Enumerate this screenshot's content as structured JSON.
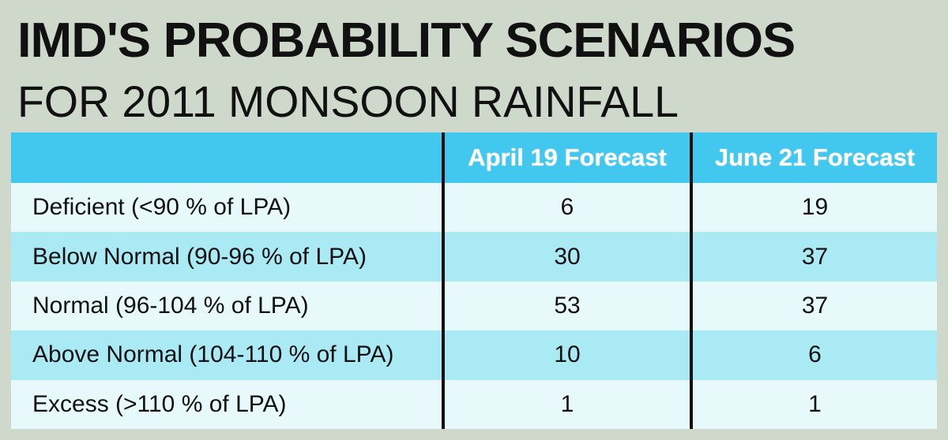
{
  "title": "IMD'S PROBABILITY SCENARIOS",
  "subtitle": "FOR 2011 MONSOON RAINFALL",
  "colors": {
    "background": "#cfd9cb",
    "header": "#42c7ef",
    "row_light": "#e8f9fc",
    "row_dark": "#aaeaf5",
    "separator": "#111111"
  },
  "chart_data": {
    "type": "table",
    "title": "IMD'S PROBABILITY SCENARIOS",
    "subtitle": "FOR 2011 MONSOON RAINFALL",
    "columns": [
      "",
      "April 19 Forecast",
      "June 21 Forecast"
    ],
    "rows": [
      {
        "label": "Deficient (<90 % of LPA)",
        "april": "6",
        "june": "19"
      },
      {
        "label": "Below Normal (90-96 % of LPA)",
        "april": "30",
        "june": "37"
      },
      {
        "label": "Normal (96-104 % of LPA)",
        "april": "53",
        "june": "37"
      },
      {
        "label": "Above Normal (104-110 % of LPA)",
        "april": "10",
        "june": "6"
      },
      {
        "label": "Excess (>110 % of LPA)",
        "april": "1",
        "june": "1"
      }
    ],
    "series": [
      {
        "name": "April 19 Forecast",
        "values": [
          6,
          30,
          53,
          10,
          1
        ]
      },
      {
        "name": "June 21 Forecast",
        "values": [
          19,
          37,
          37,
          6,
          1
        ]
      }
    ]
  }
}
